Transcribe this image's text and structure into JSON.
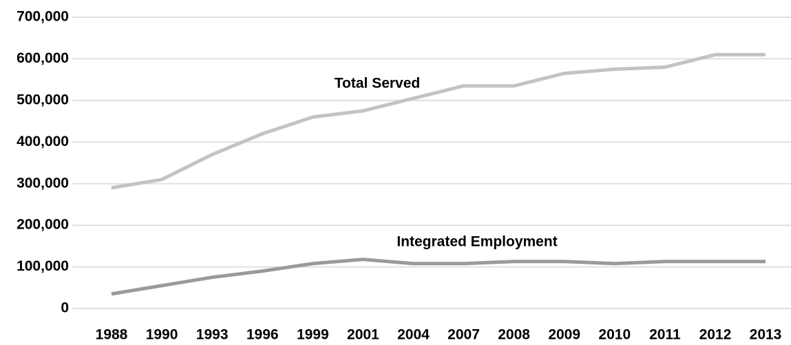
{
  "chart_data": {
    "type": "line",
    "categories": [
      "1988",
      "1990",
      "1993",
      "1996",
      "1999",
      "2001",
      "2004",
      "2007",
      "2008",
      "2009",
      "2010",
      "2011",
      "2012",
      "2013"
    ],
    "series": [
      {
        "name": "Total Served",
        "color": "#c3c3c3",
        "values": [
          290000,
          310000,
          370000,
          420000,
          460000,
          475000,
          505000,
          535000,
          535000,
          565000,
          575000,
          580000,
          610000,
          610000
        ]
      },
      {
        "name": "Integrated Employment",
        "color": "#9a9a9a",
        "values": [
          35000,
          55000,
          75000,
          90000,
          108000,
          118000,
          108000,
          108000,
          113000,
          113000,
          108000,
          113000,
          113000,
          113000
        ]
      }
    ],
    "ylim": [
      0,
      700000
    ],
    "yticks": [
      0,
      {
        "value": 100000,
        "label": "100,000"
      },
      {
        "value": 200000,
        "label": "200,000"
      },
      {
        "value": 300000,
        "label": "300,000"
      },
      {
        "value": 400000,
        "label": "400,000"
      },
      {
        "value": 500000,
        "label": "500,000"
      },
      {
        "value": 600000,
        "label": "600,000"
      },
      {
        "value": 700000,
        "label": "700,000"
      }
    ],
    "grid": true
  }
}
